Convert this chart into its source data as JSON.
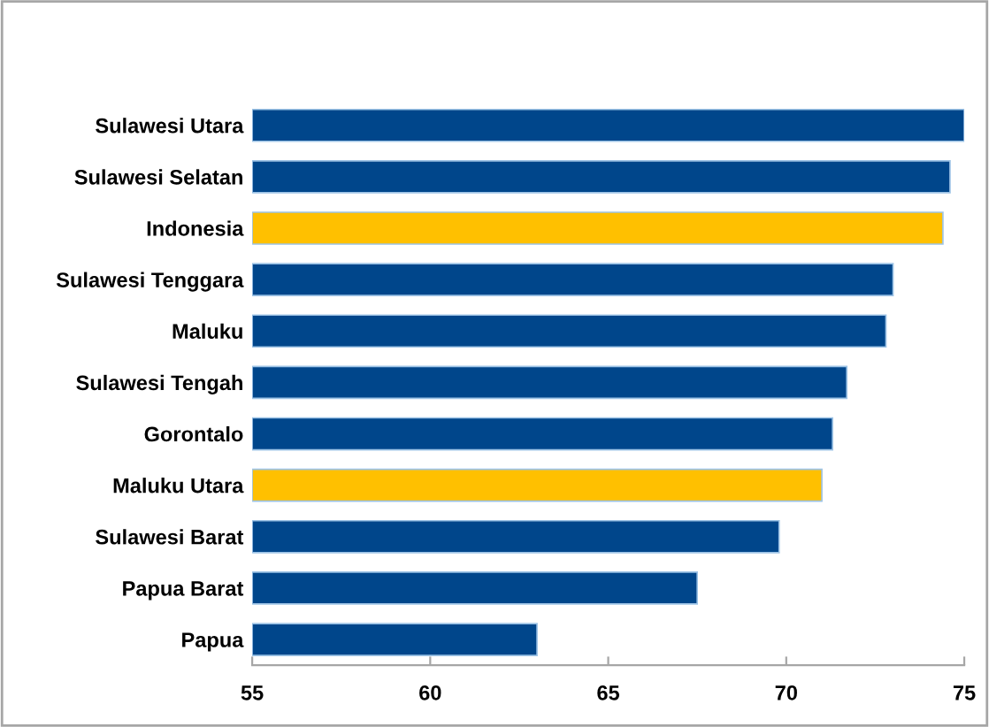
{
  "chart_data": {
    "type": "bar",
    "orientation": "horizontal",
    "categories": [
      "Sulawesi Utara",
      "Sulawesi Selatan",
      "Indonesia",
      "Sulawesi Tenggara",
      "Maluku",
      "Sulawesi Tengah",
      "Gorontalo",
      "Maluku Utara",
      "Sulawesi Barat",
      "Papua Barat",
      "Papua"
    ],
    "values": [
      75.0,
      74.6,
      74.4,
      73.0,
      72.8,
      71.7,
      71.3,
      71.0,
      69.8,
      67.5,
      63.0
    ],
    "colors": [
      "#00468b",
      "#00468b",
      "#ffc000",
      "#00468b",
      "#00468b",
      "#00468b",
      "#00468b",
      "#ffc000",
      "#00468b",
      "#00468b",
      "#00468b"
    ],
    "xlim": [
      55,
      75
    ],
    "xticks": [
      55,
      60,
      65,
      70,
      75
    ],
    "grid": false,
    "legend": false
  }
}
